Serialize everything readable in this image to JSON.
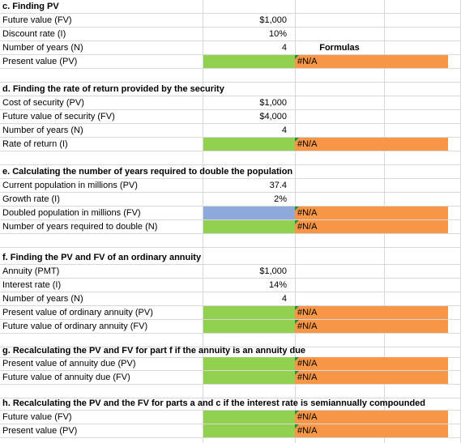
{
  "sections": {
    "c": {
      "title": "c. Finding PV",
      "rows": [
        {
          "label": "Future value (FV)",
          "value": "$1,000"
        },
        {
          "label": "Discount rate (I)",
          "value": "10%"
        },
        {
          "label": "Number of years (N)",
          "value": "4"
        },
        {
          "label": "Present value (PV)",
          "result": "#N/A"
        }
      ],
      "formulas_header": "Formulas"
    },
    "d": {
      "title": "d. Finding the rate of return provided by the security",
      "rows": [
        {
          "label": "Cost of security (PV)",
          "value": "$1,000"
        },
        {
          "label": "Future value of security (FV)",
          "value": "$4,000"
        },
        {
          "label": "Number of years (N)",
          "value": "4"
        },
        {
          "label": "Rate of return (I)",
          "result": "#N/A"
        }
      ]
    },
    "e": {
      "title": "e. Calculating the number of years required to double the population",
      "rows": [
        {
          "label": "Current population in millions (PV)",
          "value": "37.4"
        },
        {
          "label": "Growth rate (I)",
          "value": "2%"
        },
        {
          "label": "Doubled population in millions (FV)",
          "result": "#N/A"
        },
        {
          "label": "Number of years required to double (N)",
          "result": "#N/A"
        }
      ]
    },
    "f": {
      "title": "f. Finding the PV and FV of an ordinary annuity",
      "rows": [
        {
          "label": "Annuity (PMT)",
          "value": "$1,000"
        },
        {
          "label": "Interest rate (I)",
          "value": "14%"
        },
        {
          "label": "Number of years (N)",
          "value": "4"
        },
        {
          "label": "Present value of ordinary annuity (PV)",
          "result": "#N/A"
        },
        {
          "label": "Future value of ordinary annuity (FV)",
          "result": "#N/A"
        }
      ]
    },
    "g": {
      "title": "g. Recalculating the PV and FV for part f if the annuity is an annuity due",
      "rows": [
        {
          "label": "Present value of annuity due (PV)",
          "result": "#N/A"
        },
        {
          "label": "Future value of annuity due (FV)",
          "result": "#N/A"
        }
      ]
    },
    "h": {
      "title": "h. Recalculating the PV and the FV for parts a and c if the interest rate is semiannually compounded",
      "rows": [
        {
          "label": "Future value (FV)",
          "result": "#N/A"
        },
        {
          "label": "Present value (PV)",
          "result": "#N/A"
        }
      ]
    }
  },
  "colors": {
    "input_result": "#92d050",
    "formula_cell": "#f79646",
    "blue_input": "#8eaadb",
    "gridline": "#d9d9d9",
    "error_indicator": "#1e8f3a"
  }
}
